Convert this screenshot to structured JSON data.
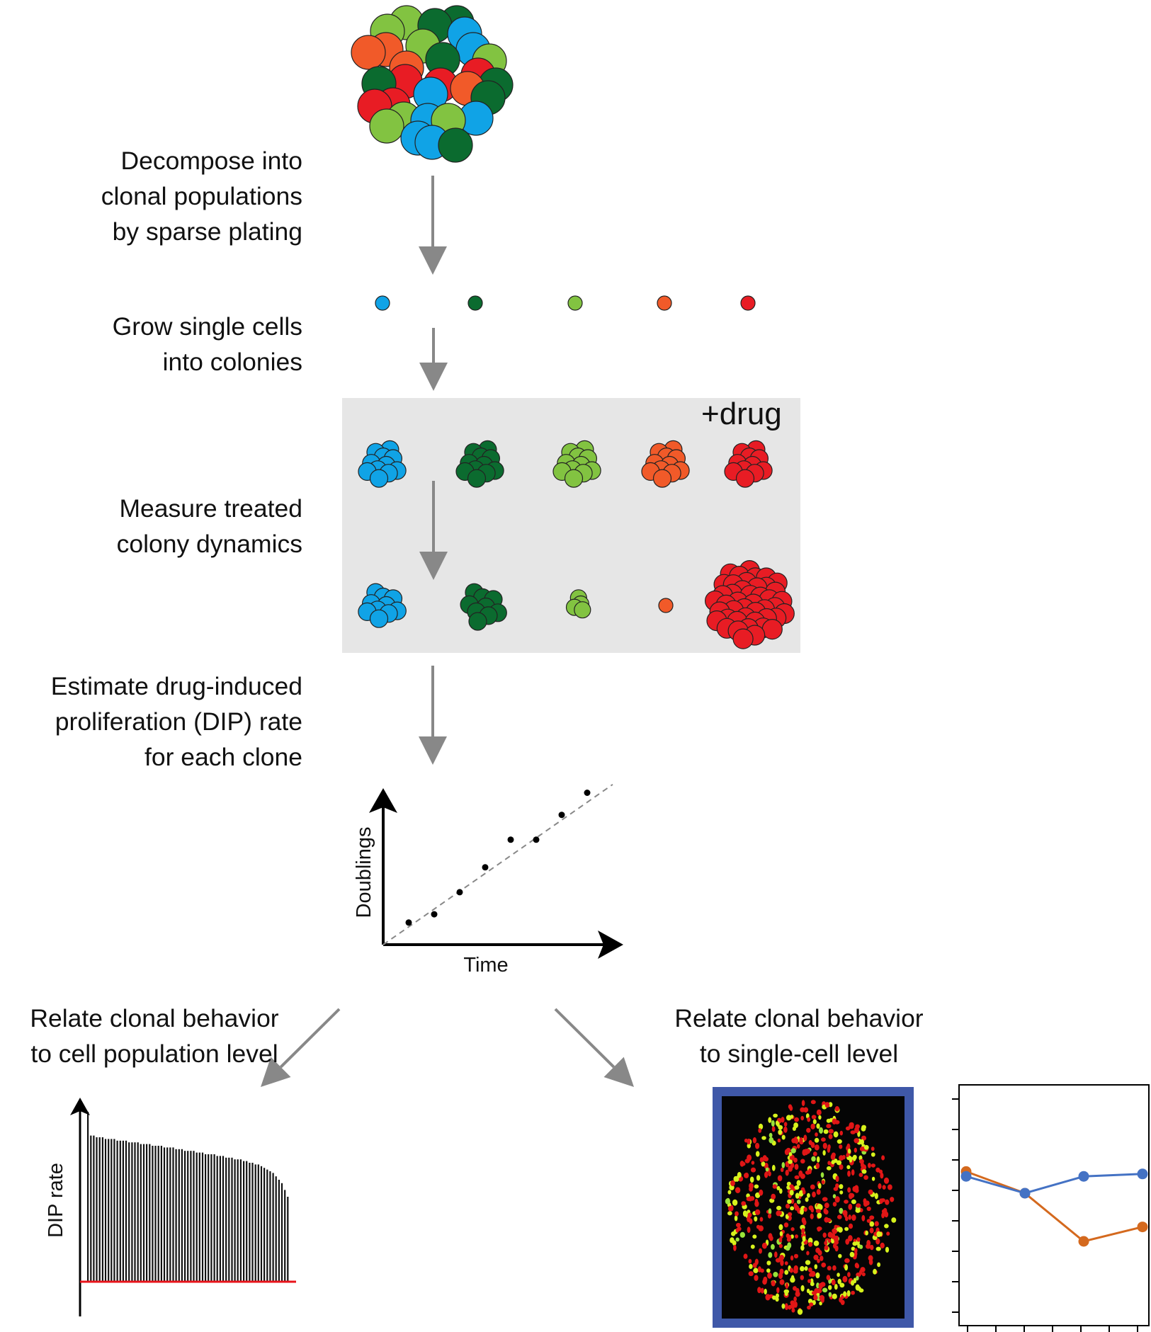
{
  "steps": {
    "decompose": [
      "Decompose into",
      "clonal populations",
      "by sparse plating"
    ],
    "grow": [
      "Grow single cells",
      "into colonies"
    ],
    "measure": [
      "Measure treated",
      "colony dynamics"
    ],
    "estimate": [
      "Estimate drug-induced",
      "proliferation (DIP) rate",
      "for each clone"
    ]
  },
  "treatment_label": "+drug",
  "doublings_plot": {
    "xlabel": "Time",
    "ylabel": "Doublings",
    "points": [
      [
        1,
        0.8
      ],
      [
        2,
        1.1
      ],
      [
        3,
        1.9
      ],
      [
        4,
        2.8
      ],
      [
        5,
        3.8
      ],
      [
        6,
        3.8
      ],
      [
        7,
        4.7
      ],
      [
        8,
        5.5
      ]
    ],
    "fit_line": [
      [
        0,
        0
      ],
      [
        9,
        5.8
      ]
    ]
  },
  "relate_population": [
    "Relate clonal behavior",
    "to cell population level"
  ],
  "relate_single_cell": [
    "Relate clonal behavior",
    "to single-cell level"
  ],
  "dip_chart": {
    "ylabel": "DIP rate",
    "bars": [
      1.0,
      0.86,
      0.86,
      0.85,
      0.85,
      0.85,
      0.84,
      0.84,
      0.84,
      0.84,
      0.83,
      0.83,
      0.83,
      0.83,
      0.82,
      0.82,
      0.82,
      0.82,
      0.81,
      0.81,
      0.81,
      0.81,
      0.8,
      0.8,
      0.8,
      0.8,
      0.79,
      0.79,
      0.79,
      0.79,
      0.78,
      0.78,
      0.78,
      0.77,
      0.77,
      0.77,
      0.77,
      0.76,
      0.76,
      0.76,
      0.75,
      0.75,
      0.75,
      0.75,
      0.74,
      0.74,
      0.74,
      0.73,
      0.73,
      0.73,
      0.72,
      0.72,
      0.72,
      0.71,
      0.71,
      0.7,
      0.7,
      0.69,
      0.69,
      0.68,
      0.67,
      0.66,
      0.65,
      0.64,
      0.62,
      0.6,
      0.58,
      0.54,
      0.5
    ]
  },
  "line_chart": {
    "series": [
      {
        "color": "#4472c4",
        "values": [
          0.62,
          0.55,
          0.62,
          0.63
        ]
      },
      {
        "color": "#d4691e",
        "values": [
          0.64,
          0.55,
          0.35,
          0.41
        ]
      }
    ]
  },
  "colors": {
    "light_blue": "#10a3e6",
    "dark_green": "#0b6b2f",
    "light_green": "#82c341",
    "orange": "#f15a29",
    "red": "#e81c24",
    "arrow_gray": "#888888",
    "panel_gray": "#e6e6e6",
    "image_frame": "#3f58a8",
    "baseline_red": "#e8141b"
  }
}
